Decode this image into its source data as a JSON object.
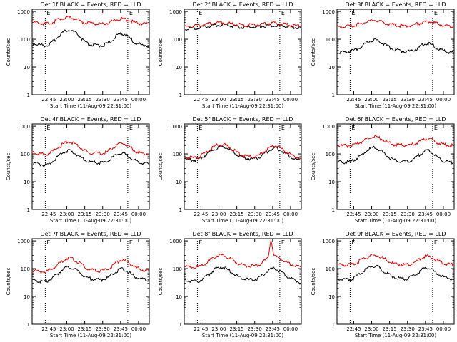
{
  "chart_data": [
    {
      "type": "line",
      "title": "Det 1f BLACK = Events, RED = LLD",
      "xlabel": "Start Time (11-Aug-09 22:31:00)",
      "ylabel": "Counts/sec",
      "x_ticks": [
        "22:45",
        "23:00",
        "23:15",
        "23:30",
        "23:45",
        "00:00"
      ],
      "y_ticks": [
        "1",
        "10",
        "100",
        "1000"
      ],
      "y_scale": "log",
      "ylim": [
        1,
        1200
      ],
      "x_range": [
        "22:31:00",
        "00:09:00"
      ],
      "markers": [
        {
          "label": "E",
          "time": "22:42:00"
        },
        {
          "label": "E",
          "time": "23:51:00"
        }
      ],
      "series": [
        {
          "color": "#000000",
          "values": [
            70,
            68,
            65,
            62,
            60,
            62,
            70,
            85,
            110,
            140,
            175,
            200,
            210,
            200,
            180,
            150,
            115,
            90,
            72,
            65,
            62,
            60,
            60,
            60,
            62,
            68,
            80,
            100,
            125,
            150,
            160,
            150,
            125,
            100,
            80,
            70,
            65,
            62,
            60,
            58
          ]
        },
        {
          "color": "#e00000",
          "values": [
            400,
            390,
            380,
            370,
            360,
            365,
            380,
            420,
            470,
            520,
            560,
            600,
            610,
            590,
            550,
            500,
            450,
            410,
            390,
            375,
            370,
            365,
            362,
            362,
            365,
            380,
            410,
            450,
            500,
            530,
            545,
            525,
            490,
            450,
            410,
            390,
            378,
            370,
            365,
            362
          ]
        }
      ]
    },
    {
      "type": "line",
      "title": "Det 2f BLACK = Events, RED = LLD",
      "xlabel": "Start Time (11-Aug-09 22:31:00)",
      "ylabel": "Counts/sec",
      "x_ticks": [
        "22:45",
        "23:00",
        "23:15",
        "23:30",
        "23:45",
        "00:00"
      ],
      "y_ticks": [
        "1",
        "10",
        "100",
        "1000"
      ],
      "y_scale": "log",
      "ylim": [
        1,
        1200
      ],
      "x_range": [
        "22:31:00",
        "00:09:00"
      ],
      "markers": [
        {
          "label": "E",
          "time": "22:42:00"
        },
        {
          "label": "E",
          "time": "23:51:00"
        }
      ],
      "series": [
        {
          "color": "#000000",
          "values": [
            240,
            240,
            245,
            250,
            255,
            260,
            270,
            280,
            290,
            300,
            310,
            320,
            330,
            325,
            315,
            305,
            295,
            285,
            280,
            275,
            270,
            270,
            270,
            272,
            275,
            280,
            290,
            300,
            310,
            318,
            322,
            315,
            305,
            295,
            285,
            278,
            272,
            268,
            265,
            262
          ]
        },
        {
          "color": "#e00000",
          "values": [
            280,
            285,
            290,
            300,
            310,
            320,
            330,
            345,
            360,
            375,
            385,
            395,
            400,
            395,
            385,
            370,
            355,
            345,
            335,
            330,
            325,
            322,
            320,
            322,
            325,
            332,
            345,
            358,
            370,
            380,
            385,
            378,
            365,
            350,
            338,
            330,
            322,
            315,
            310,
            305
          ]
        }
      ]
    },
    {
      "type": "line",
      "title": "Det 3f BLACK = Events, RED = LLD",
      "xlabel": "Start Time (11-Aug-09 22:31:00)",
      "ylabel": "Counts/sec",
      "x_ticks": [
        "22:45",
        "23:00",
        "23:15",
        "23:30",
        "23:45",
        "00:00"
      ],
      "y_ticks": [
        "1",
        "10",
        "100",
        "1000"
      ],
      "y_scale": "log",
      "ylim": [
        1,
        1200
      ],
      "x_range": [
        "22:31:00",
        "00:09:00"
      ],
      "markers": [
        {
          "label": "E",
          "time": "22:42:00"
        },
        {
          "label": "E",
          "time": "23:51:00"
        }
      ],
      "series": [
        {
          "color": "#000000",
          "values": [
            33,
            33,
            34,
            35,
            36,
            38,
            42,
            48,
            56,
            66,
            78,
            88,
            95,
            92,
            85,
            75,
            64,
            55,
            48,
            43,
            40,
            38,
            37,
            36,
            36,
            38,
            42,
            48,
            56,
            64,
            70,
            67,
            60,
            52,
            45,
            40,
            37,
            35,
            34,
            33
          ]
        },
        {
          "color": "#e00000",
          "values": [
            280,
            280,
            285,
            290,
            300,
            310,
            325,
            345,
            370,
            400,
            430,
            460,
            480,
            470,
            445,
            415,
            385,
            355,
            335,
            320,
            310,
            305,
            300,
            300,
            305,
            315,
            335,
            360,
            390,
            420,
            440,
            430,
            405,
            375,
            345,
            325,
            310,
            300,
            295,
            290
          ]
        }
      ]
    },
    {
      "type": "line",
      "title": "Det 4f BLACK = Events, RED = LLD",
      "xlabel": "Start Time (11-Aug-09 22:31:00)",
      "ylabel": "Counts/sec",
      "x_ticks": [
        "22:45",
        "23:00",
        "23:15",
        "23:30",
        "23:45",
        "00:00"
      ],
      "y_ticks": [
        "1",
        "10",
        "100",
        "1000"
      ],
      "y_scale": "log",
      "ylim": [
        1,
        1200
      ],
      "x_range": [
        "22:31:00",
        "00:09:00"
      ],
      "markers": [
        {
          "label": "E",
          "time": "22:42:00"
        },
        {
          "label": "E",
          "time": "23:51:00"
        }
      ],
      "series": [
        {
          "color": "#000000",
          "values": [
            48,
            46,
            44,
            42,
            40,
            42,
            48,
            58,
            72,
            90,
            108,
            125,
            130,
            122,
            108,
            92,
            76,
            64,
            56,
            52,
            50,
            49,
            48,
            48,
            50,
            55,
            64,
            76,
            90,
            100,
            105,
            98,
            85,
            72,
            62,
            55,
            50,
            47,
            45,
            43
          ]
        },
        {
          "color": "#e00000",
          "values": [
            110,
            105,
            100,
            98,
            98,
            102,
            112,
            130,
            155,
            185,
            220,
            255,
            275,
            265,
            240,
            205,
            170,
            140,
            122,
            112,
            108,
            106,
            105,
            105,
            108,
            118,
            138,
            165,
            195,
            225,
            240,
            228,
            200,
            168,
            140,
            122,
            112,
            106,
            102,
            100
          ]
        }
      ]
    },
    {
      "type": "line",
      "title": "Det 5f BLACK = Events, RED = LLD",
      "xlabel": "Start Time (11-Aug-09 22:31:00)",
      "ylabel": "Counts/sec",
      "x_ticks": [
        "22:45",
        "23:00",
        "23:15",
        "23:30",
        "23:45",
        "00:00"
      ],
      "y_ticks": [
        "1",
        "10",
        "100",
        "1000"
      ],
      "y_scale": "log",
      "ylim": [
        1,
        1200
      ],
      "x_range": [
        "22:31:00",
        "00:09:00"
      ],
      "markers": [
        {
          "label": "E",
          "time": "22:42:00"
        },
        {
          "label": "E",
          "time": "23:51:00"
        }
      ],
      "series": [
        {
          "color": "#000000",
          "values": [
            65,
            62,
            60,
            60,
            62,
            68,
            78,
            92,
            110,
            130,
            150,
            168,
            180,
            178,
            165,
            145,
            122,
            102,
            88,
            78,
            72,
            68,
            66,
            66,
            68,
            75,
            88,
            105,
            125,
            145,
            160,
            158,
            142,
            120,
            100,
            85,
            75,
            68,
            63,
            60
          ]
        },
        {
          "color": "#e00000",
          "values": [
            78,
            75,
            72,
            72,
            75,
            82,
            95,
            112,
            135,
            160,
            185,
            208,
            222,
            218,
            200,
            175,
            148,
            124,
            106,
            94,
            86,
            82,
            80,
            80,
            82,
            90,
            105,
            126,
            150,
            175,
            195,
            192,
            172,
            145,
            120,
            102,
            90,
            82,
            76,
            72
          ]
        }
      ]
    },
    {
      "type": "line",
      "title": "Det 6f BLACK = Events, RED = LLD",
      "xlabel": "Start Time (11-Aug-09 22:31:00)",
      "ylabel": "Counts/sec",
      "x_ticks": [
        "22:45",
        "23:00",
        "23:15",
        "23:30",
        "23:45",
        "00:00"
      ],
      "y_ticks": [
        "1",
        "10",
        "100",
        "1000"
      ],
      "y_scale": "log",
      "ylim": [
        1,
        1200
      ],
      "x_range": [
        "22:31:00",
        "00:09:00"
      ],
      "markers": [
        {
          "label": "E",
          "time": "22:42:00"
        },
        {
          "label": "E",
          "time": "23:51:00"
        }
      ],
      "series": [
        {
          "color": "#000000",
          "values": [
            52,
            50,
            50,
            50,
            52,
            56,
            64,
            76,
            92,
            112,
            135,
            155,
            168,
            160,
            142,
            120,
            98,
            80,
            68,
            60,
            56,
            54,
            53,
            53,
            55,
            60,
            70,
            84,
            102,
            120,
            132,
            126,
            108,
            88,
            72,
            62,
            56,
            52,
            50,
            48
          ]
        },
        {
          "color": "#e00000",
          "values": [
            200,
            198,
            196,
            196,
            198,
            205,
            218,
            240,
            270,
            305,
            345,
            385,
            410,
            400,
            370,
            330,
            290,
            255,
            230,
            215,
            208,
            205,
            204,
            204,
            207,
            215,
            232,
            258,
            292,
            330,
            360,
            350,
            318,
            280,
            248,
            226,
            212,
            205,
            202,
            200
          ]
        }
      ]
    },
    {
      "type": "line",
      "title": "Det 7f BLACK = Events, RED = LLD",
      "xlabel": "Start Time (11-Aug-09 22:31:00)",
      "ylabel": "Counts/sec",
      "x_ticks": [
        "22:45",
        "23:00",
        "23:15",
        "23:30",
        "23:45",
        "00:00"
      ],
      "y_ticks": [
        "1",
        "10",
        "100",
        "1000"
      ],
      "y_scale": "log",
      "ylim": [
        1,
        1200
      ],
      "x_range": [
        "22:31:00",
        "00:09:00"
      ],
      "markers": [
        {
          "label": "E",
          "time": "22:42:00"
        },
        {
          "label": "E",
          "time": "23:51:00"
        }
      ],
      "series": [
        {
          "color": "#000000",
          "values": [
            40,
            38,
            36,
            35,
            35,
            37,
            42,
            50,
            62,
            76,
            92,
            108,
            115,
            110,
            98,
            84,
            70,
            58,
            50,
            45,
            42,
            40,
            40,
            40,
            42,
            46,
            54,
            65,
            78,
            90,
            96,
            90,
            78,
            65,
            55,
            48,
            44,
            42,
            40,
            38
          ]
        },
        {
          "color": "#e00000",
          "values": [
            85,
            82,
            78,
            76,
            76,
            80,
            90,
            106,
            130,
            160,
            192,
            225,
            245,
            235,
            210,
            180,
            150,
            125,
            108,
            96,
            90,
            86,
            84,
            84,
            86,
            94,
            110,
            132,
            160,
            188,
            205,
            195,
            172,
            145,
            122,
            106,
            96,
            90,
            86,
            84
          ]
        }
      ]
    },
    {
      "type": "line",
      "title": "Det 8f BLACK = Events, RED = LLD",
      "xlabel": "Start Time (11-Aug-09 22:31:00)",
      "ylabel": "Counts/sec",
      "x_ticks": [
        "22:45",
        "23:00",
        "23:15",
        "23:30",
        "23:45",
        "00:00"
      ],
      "y_ticks": [
        "1",
        "10",
        "100",
        "1000"
      ],
      "y_scale": "log",
      "ylim": [
        1,
        1200
      ],
      "x_range": [
        "22:31:00",
        "00:09:00"
      ],
      "markers": [
        {
          "label": "E",
          "time": "22:42:00"
        },
        {
          "label": "E",
          "time": "23:51:00"
        }
      ],
      "series": [
        {
          "color": "#000000",
          "values": [
            40,
            38,
            36,
            35,
            35,
            37,
            42,
            50,
            62,
            76,
            92,
            106,
            112,
            108,
            97,
            84,
            70,
            59,
            51,
            46,
            43,
            41,
            40,
            40,
            42,
            47,
            56,
            68,
            82,
            96,
            102,
            95,
            82,
            68,
            57,
            49,
            43,
            39,
            35,
            30
          ]
        },
        {
          "color": "#e00000",
          "values": [
            115,
            112,
            110,
            110,
            112,
            120,
            135,
            158,
            188,
            222,
            258,
            290,
            305,
            295,
            270,
            238,
            205,
            176,
            155,
            140,
            132,
            128,
            126,
            126,
            130,
            142,
            165,
            195,
            232,
            1200,
            280,
            258,
            228,
            198,
            172,
            152,
            138,
            128,
            120,
            112
          ]
        }
      ]
    },
    {
      "type": "line",
      "title": "Det 9f BLACK = Events, RED = LLD",
      "xlabel": "Start Time (11-Aug-09 22:31:00)",
      "ylabel": "Counts/sec",
      "x_ticks": [
        "22:45",
        "23:00",
        "23:15",
        "23:30",
        "23:45",
        "00:00"
      ],
      "y_ticks": [
        "1",
        "10",
        "100",
        "1000"
      ],
      "y_scale": "log",
      "ylim": [
        1,
        1200
      ],
      "x_range": [
        "22:31:00",
        "00:09:00"
      ],
      "markers": [
        {
          "label": "E",
          "time": "22:42:00"
        },
        {
          "label": "E",
          "time": "23:51:00"
        }
      ],
      "series": [
        {
          "color": "#000000",
          "values": [
            45,
            43,
            42,
            41,
            41,
            43,
            48,
            57,
            70,
            85,
            102,
            118,
            126,
            120,
            106,
            90,
            75,
            63,
            55,
            50,
            47,
            45,
            44,
            44,
            46,
            51,
            60,
            72,
            86,
            100,
            108,
            102,
            88,
            73,
            61,
            54,
            49,
            46,
            44,
            42
          ]
        },
        {
          "color": "#e00000",
          "values": [
            140,
            138,
            136,
            135,
            136,
            142,
            155,
            175,
            202,
            232,
            262,
            290,
            305,
            295,
            272,
            242,
            212,
            186,
            166,
            152,
            145,
            141,
            139,
            139,
            142,
            152,
            172,
            198,
            228,
            258,
            275,
            265,
            240,
            210,
            184,
            164,
            152,
            145,
            141,
            138
          ]
        }
      ]
    }
  ]
}
